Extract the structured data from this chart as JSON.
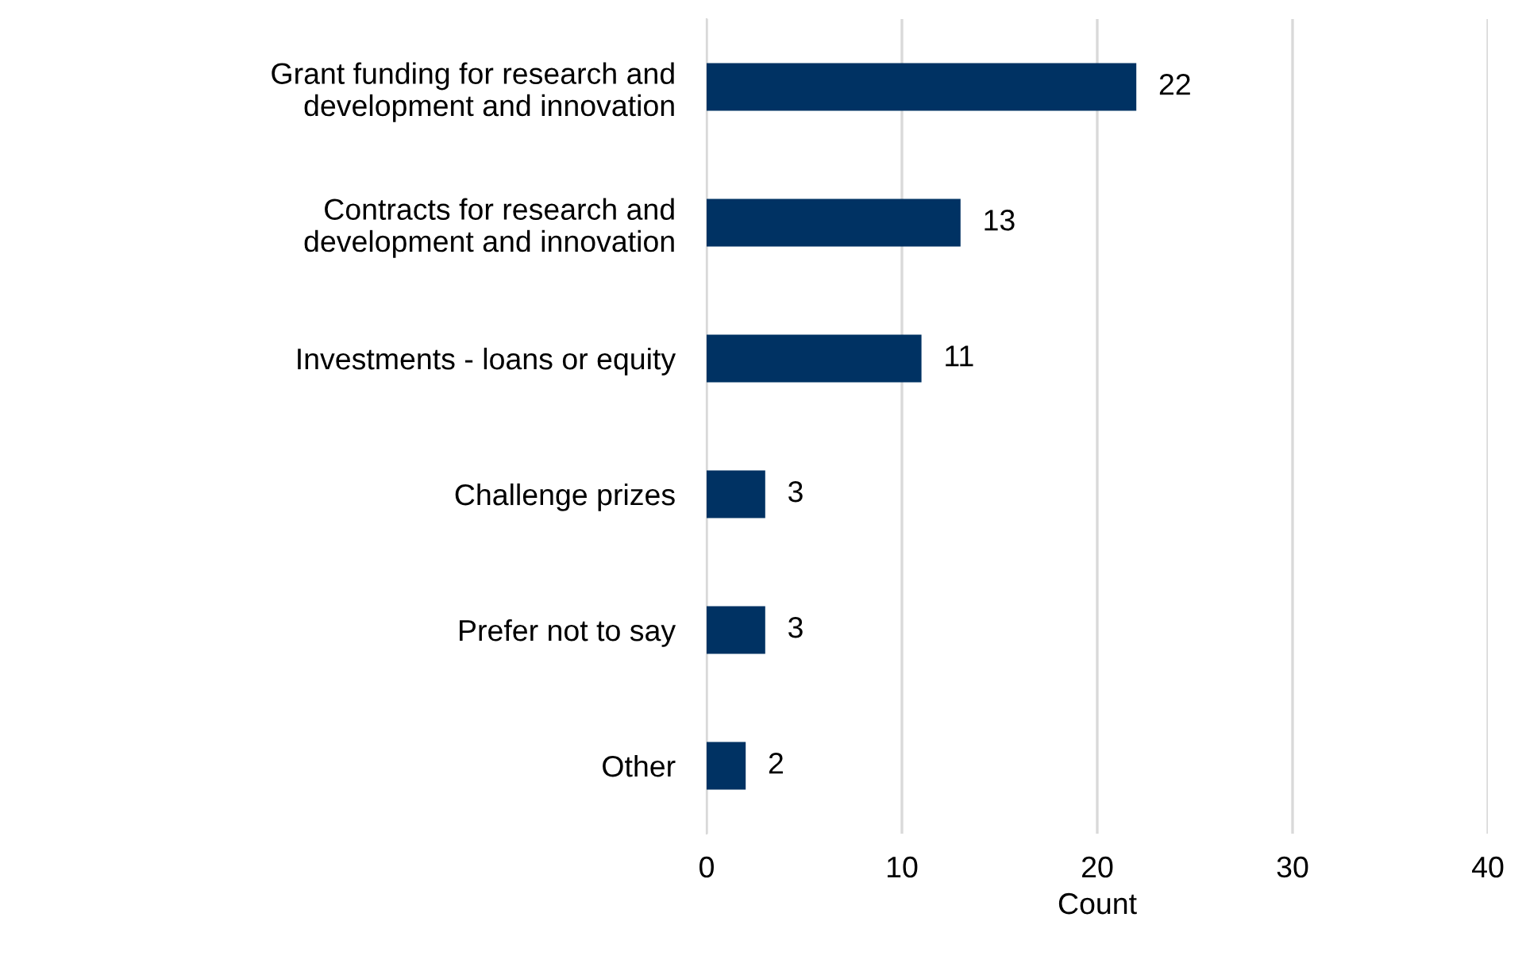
{
  "chart_data": {
    "type": "bar",
    "orientation": "horizontal",
    "xlabel": "Count",
    "categories": [
      "Grant funding for research and\ndevelopment and innovation",
      "Contracts for research and\ndevelopment and innovation",
      "Investments - loans or equity",
      "Challenge prizes",
      "Prefer not to say",
      "Other"
    ],
    "values": [
      22,
      13,
      11,
      3,
      3,
      2
    ],
    "color": "#003263",
    "xlim": [
      0,
      40
    ],
    "xticks": [
      0,
      10,
      20,
      30,
      40
    ],
    "grid": "x",
    "data_labels": true
  }
}
